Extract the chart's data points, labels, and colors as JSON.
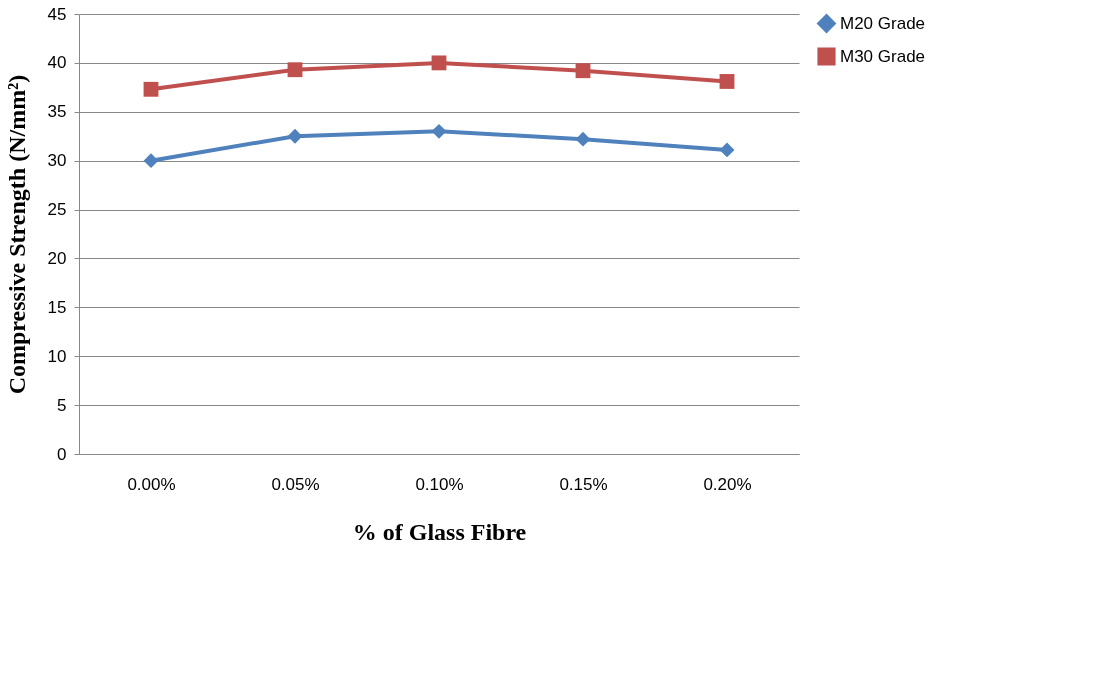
{
  "chart_data": {
    "type": "line",
    "xlabel": "% of Glass Fibre",
    "ylabel": "Compressive Strength (N/mm²)",
    "categories": [
      "0.00%",
      "0.05%",
      "0.10%",
      "0.15%",
      "0.20%"
    ],
    "series": [
      {
        "name": "M20 Grade",
        "color": "#4f81bd",
        "marker": "diamond",
        "values": [
          30.0,
          32.5,
          33.0,
          32.2,
          31.1
        ]
      },
      {
        "name": "M30 Grade",
        "color": "#c0504d",
        "marker": "square",
        "values": [
          37.3,
          39.3,
          40.0,
          39.2,
          38.1
        ]
      }
    ],
    "ylim": [
      0,
      45
    ],
    "yticks": [
      0,
      5,
      10,
      15,
      20,
      25,
      30,
      35,
      40,
      45
    ],
    "grid": "y",
    "legend": "right",
    "line_style": "solid"
  }
}
